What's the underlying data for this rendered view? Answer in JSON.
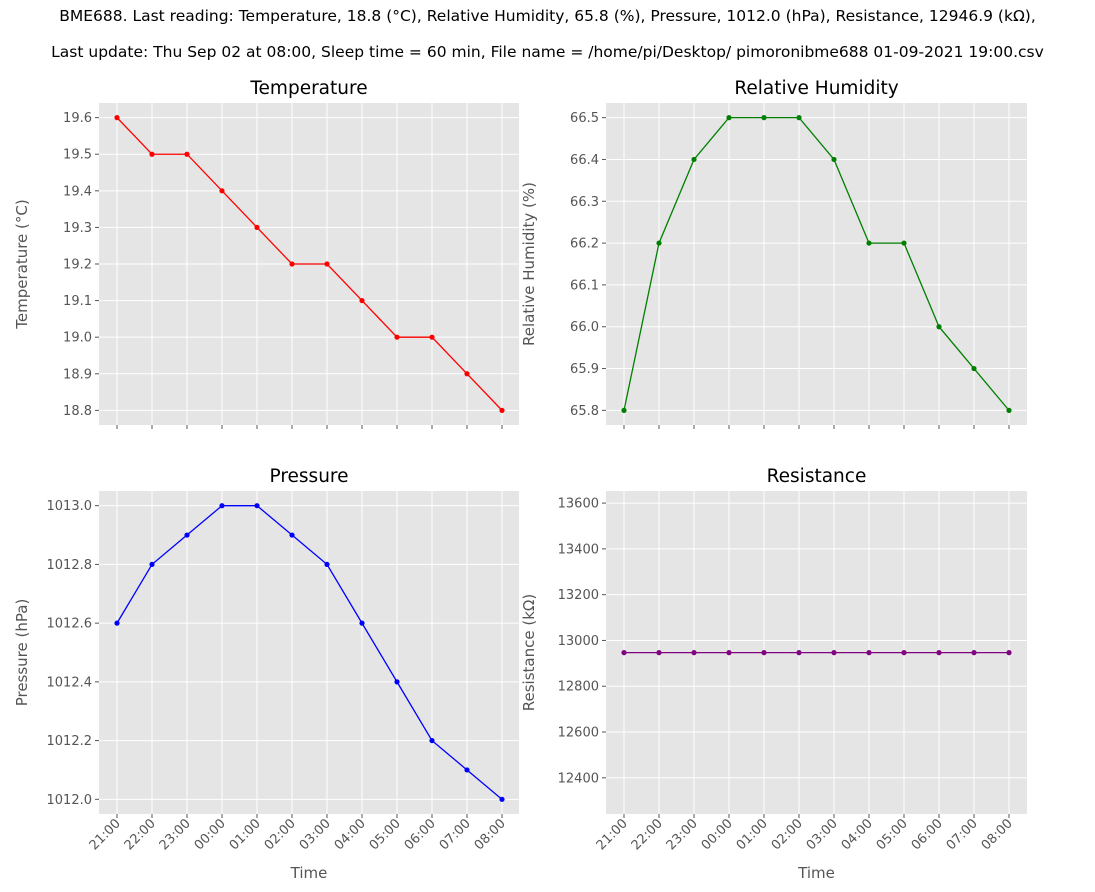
{
  "header": {
    "line1": "BME688. Last reading: Temperature, 18.8 (°C), Relative Humidity, 65.8 (%), Pressure, 1012.0 (hPa), Resistance, 12946.9 (kΩ),",
    "line2": "Last update: Thu Sep 02 at 08:00, Sleep time = 60 min, File name = /home/pi/Desktop/ pimoronibme688 01-09-2021 19:00.csv"
  },
  "chart_data": [
    {
      "type": "line",
      "title": "Temperature",
      "ylabel": "Temperature (°C)",
      "xlabel": "",
      "color": "#ff0000",
      "categories": [
        "21:00",
        "22:00",
        "23:00",
        "00:00",
        "01:00",
        "02:00",
        "03:00",
        "04:00",
        "05:00",
        "06:00",
        "07:00",
        "08:00"
      ],
      "values": [
        19.6,
        19.5,
        19.5,
        19.4,
        19.3,
        19.2,
        19.2,
        19.1,
        19.0,
        19.0,
        18.9,
        18.8
      ],
      "ylim": [
        18.76,
        19.64
      ],
      "yticks": [
        18.8,
        18.9,
        19.0,
        19.1,
        19.2,
        19.3,
        19.4,
        19.5,
        19.6
      ],
      "ydecimals": 1,
      "show_xticklabels": false,
      "grid": true
    },
    {
      "type": "line",
      "title": "Relative Humidity",
      "ylabel": "Relative Humidity (%)",
      "xlabel": "",
      "color": "#008000",
      "categories": [
        "21:00",
        "22:00",
        "23:00",
        "00:00",
        "01:00",
        "02:00",
        "03:00",
        "04:00",
        "05:00",
        "06:00",
        "07:00",
        "08:00"
      ],
      "values": [
        65.8,
        66.2,
        66.4,
        66.5,
        66.5,
        66.5,
        66.4,
        66.2,
        66.2,
        66.0,
        65.9,
        65.8
      ],
      "ylim": [
        65.765,
        66.535
      ],
      "yticks": [
        65.8,
        65.9,
        66.0,
        66.1,
        66.2,
        66.3,
        66.4,
        66.5
      ],
      "ydecimals": 1,
      "show_xticklabels": false,
      "grid": true
    },
    {
      "type": "line",
      "title": "Pressure",
      "ylabel": "Pressure (hPa)",
      "xlabel": "Time",
      "color": "#0000ff",
      "categories": [
        "21:00",
        "22:00",
        "23:00",
        "00:00",
        "01:00",
        "02:00",
        "03:00",
        "04:00",
        "05:00",
        "06:00",
        "07:00",
        "08:00"
      ],
      "values": [
        1012.6,
        1012.8,
        1012.9,
        1013.0,
        1013.0,
        1012.9,
        1012.8,
        1012.6,
        1012.4,
        1012.2,
        1012.1,
        1012.0
      ],
      "ylim": [
        1011.95,
        1013.05
      ],
      "yticks": [
        1012.0,
        1012.2,
        1012.4,
        1012.6,
        1012.8,
        1013.0
      ],
      "ydecimals": 1,
      "show_xticklabels": true,
      "grid": true
    },
    {
      "type": "line",
      "title": "Resistance",
      "ylabel": "Resistance (kΩ)",
      "xlabel": "Time",
      "color": "#800080",
      "categories": [
        "21:00",
        "22:00",
        "23:00",
        "00:00",
        "01:00",
        "02:00",
        "03:00",
        "04:00",
        "05:00",
        "06:00",
        "07:00",
        "08:00"
      ],
      "values": [
        12946.9,
        12946.9,
        12946.9,
        12946.9,
        12946.9,
        12946.9,
        12946.9,
        12946.9,
        12946.9,
        12946.9,
        12946.9,
        12946.9
      ],
      "ylim": [
        12241.9,
        13652.8
      ],
      "yticks": [
        12400,
        12600,
        12800,
        13000,
        13200,
        13400,
        13600
      ],
      "ydecimals": 0,
      "show_xticklabels": true,
      "grid": true
    }
  ]
}
